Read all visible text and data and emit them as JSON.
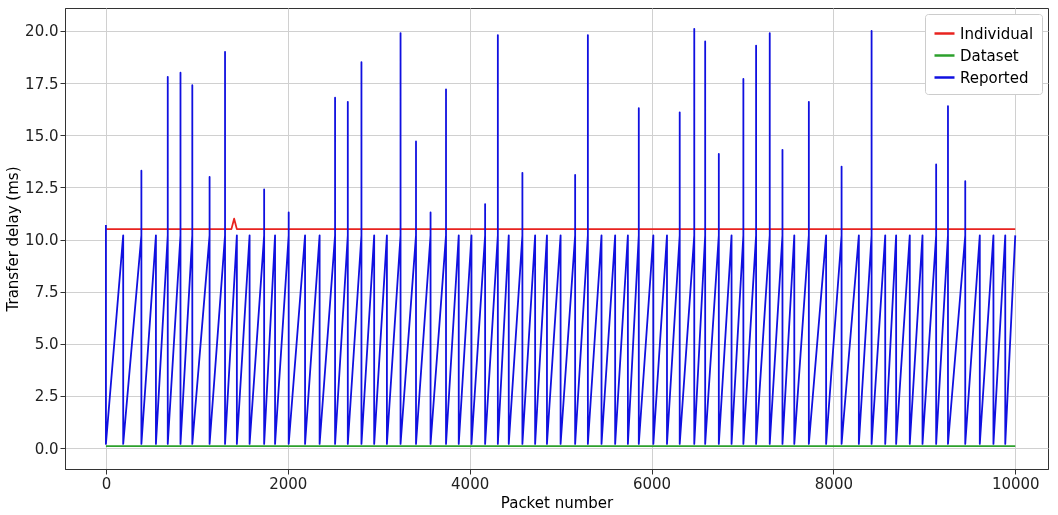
{
  "chart_data": {
    "type": "line",
    "xlabel": "Packet number",
    "ylabel": "Transfer delay (ms)",
    "xlim": [
      -450,
      10360
    ],
    "ylim": [
      -1.0,
      21.1
    ],
    "xticks": [
      0,
      2000,
      4000,
      6000,
      8000,
      10000
    ],
    "yticks": [
      {
        "value": 0,
        "label": "0.0"
      },
      {
        "value": 2.5,
        "label": "2.5"
      },
      {
        "value": 5,
        "label": "5.0"
      },
      {
        "value": 7.5,
        "label": "7.5"
      },
      {
        "value": 10,
        "label": "10.0"
      },
      {
        "value": 12.5,
        "label": "12.5"
      },
      {
        "value": 15,
        "label": "15.0"
      },
      {
        "value": 17.5,
        "label": "17.5"
      },
      {
        "value": 20,
        "label": "20.0"
      }
    ],
    "grid": true,
    "legend": "top right",
    "series": [
      {
        "name": "Individual",
        "color": "#e8231f",
        "x": [
          0,
          1380,
          1410,
          1440,
          10000
        ],
        "values": [
          10.5,
          10.5,
          11.0,
          10.5,
          10.5
        ]
      },
      {
        "name": "Dataset",
        "color": "#2ca02c",
        "x": [
          0,
          10000
        ],
        "values": [
          0.1,
          0.1
        ]
      },
      {
        "name": "Reported",
        "color": "#1010e0",
        "x": [
          0,
          0,
          190,
          190,
          390,
          390,
          390,
          550,
          550,
          680,
          680,
          680,
          820,
          820,
          820,
          950,
          950,
          950,
          1140,
          1140,
          1140,
          1310,
          1310,
          1310,
          1440,
          1440,
          1580,
          1580,
          1740,
          1740,
          1740,
          1860,
          1860,
          2010,
          2010,
          2010,
          2190,
          2190,
          2350,
          2350,
          2520,
          2520,
          2520,
          2660,
          2660,
          2660,
          2810,
          2810,
          2810,
          2950,
          2950,
          3090,
          3090,
          3240,
          3240,
          3240,
          3410,
          3410,
          3410,
          3570,
          3570,
          3570,
          3740,
          3740,
          3740,
          3880,
          3880,
          4020,
          4020,
          4170,
          4170,
          4170,
          4310,
          4310,
          4310,
          4430,
          4430,
          4580,
          4580,
          4580,
          4720,
          4720,
          4850,
          4850,
          5000,
          5000,
          5160,
          5160,
          5160,
          5300,
          5300,
          5300,
          5450,
          5450,
          5600,
          5600,
          5740,
          5740,
          5860,
          5860,
          5860,
          6020,
          6020,
          6170,
          6170,
          6310,
          6310,
          6310,
          6470,
          6470,
          6470,
          6590,
          6590,
          6590,
          6740,
          6740,
          6740,
          6880,
          6880,
          7010,
          7010,
          7010,
          7150,
          7150,
          7150,
          7300,
          7300,
          7300,
          7440,
          7440,
          7440,
          7570,
          7570,
          7730,
          7730,
          7730,
          7920,
          7920,
          8090,
          8090,
          8090,
          8280,
          8280,
          8420,
          8420,
          8420,
          8570,
          8570,
          8690,
          8690,
          8840,
          8840,
          8980,
          8980,
          9130,
          9130,
          9130,
          9260,
          9260,
          9260,
          9450,
          9450,
          9450,
          9610,
          9610,
          9760,
          9760,
          9890,
          9890,
          10000
        ],
        "values": [
          10.7,
          0.2,
          10.2,
          0.2,
          10.2,
          13.3,
          0.2,
          10.2,
          0.2,
          10.2,
          17.8,
          0.2,
          10.2,
          18.0,
          0.2,
          10.2,
          17.4,
          0.2,
          10.2,
          13.0,
          0.2,
          10.2,
          19.0,
          0.2,
          10.2,
          0.2,
          10.2,
          0.2,
          10.2,
          12.4,
          0.2,
          10.2,
          0.2,
          10.2,
          11.3,
          0.2,
          10.2,
          0.2,
          10.2,
          0.2,
          10.2,
          16.8,
          0.2,
          10.2,
          16.6,
          0.2,
          10.2,
          18.5,
          0.2,
          10.2,
          0.2,
          10.2,
          0.2,
          10.2,
          19.9,
          0.2,
          10.2,
          14.7,
          0.2,
          10.2,
          11.3,
          0.2,
          10.2,
          17.2,
          0.2,
          10.2,
          0.2,
          10.2,
          0.2,
          10.2,
          11.7,
          0.2,
          10.2,
          19.8,
          0.2,
          10.2,
          0.2,
          10.2,
          13.2,
          0.2,
          10.2,
          0.2,
          10.2,
          0.2,
          10.2,
          0.2,
          10.2,
          13.1,
          0.2,
          10.2,
          19.8,
          0.2,
          10.2,
          0.2,
          10.2,
          0.2,
          10.2,
          0.2,
          10.2,
          16.3,
          0.2,
          10.2,
          0.2,
          10.2,
          0.2,
          10.2,
          16.1,
          0.2,
          10.2,
          20.1,
          0.2,
          10.2,
          19.5,
          0.2,
          10.2,
          14.1,
          0.2,
          10.2,
          0.2,
          10.2,
          17.7,
          0.2,
          10.2,
          19.3,
          0.2,
          10.2,
          19.9,
          0.2,
          10.2,
          14.3,
          0.2,
          10.2,
          0.2,
          10.2,
          16.6,
          0.2,
          10.2,
          0.2,
          10.2,
          13.5,
          0.2,
          10.2,
          0.2,
          10.2,
          20.0,
          0.2,
          10.2,
          0.2,
          10.2,
          0.2,
          10.2,
          0.2,
          10.2,
          0.2,
          10.2,
          13.6,
          0.2,
          10.2,
          16.4,
          0.2,
          10.2,
          12.8,
          0.2,
          10.2,
          0.2,
          10.2,
          0.2,
          10.2,
          0.2,
          10.2
        ]
      }
    ]
  }
}
